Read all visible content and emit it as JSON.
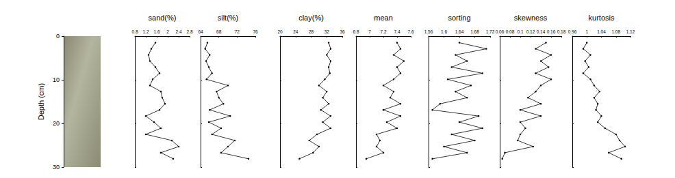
{
  "chart_data": [
    {
      "type": "image",
      "ylabel": "Depth (cm)",
      "ylim": [
        0,
        30
      ],
      "yticks": [
        0,
        10,
        20,
        30
      ],
      "tick_labels": "y",
      "grid": false
    },
    {
      "type": "line",
      "title": "sand(%)",
      "x": [
        1.55,
        1.4,
        1.3,
        1.35,
        1.55,
        1.7,
        1.45,
        1.35,
        1.75,
        1.8,
        1.9,
        1.7,
        1.2,
        1.5,
        1.75,
        1.2,
        2.15,
        2.4,
        1.75,
        2.2
      ],
      "y": [
        1.5,
        2.9,
        4.3,
        5.7,
        7.1,
        8.5,
        9.9,
        11.3,
        12.7,
        14.1,
        15.5,
        16.9,
        18.3,
        19.7,
        21.1,
        22.5,
        23.9,
        25.3,
        26.7,
        28.1
      ],
      "xlim": [
        0.8,
        2.8
      ],
      "xticks": [
        0.8,
        1.2,
        1.6,
        2,
        2.4,
        2.8
      ],
      "ylim": [
        0,
        30
      ],
      "yticks": [
        0,
        10,
        20,
        30
      ],
      "tick_labels": "x",
      "grid": false,
      "color": "#000000",
      "marker": "circle",
      "line_style": "solid"
    },
    {
      "type": "line",
      "title": "silt(%)",
      "x": [
        65.5,
        65.0,
        66.0,
        65.2,
        65.8,
        66.5,
        65.3,
        70.0,
        67.5,
        68.0,
        69.0,
        66.0,
        70.5,
        65.8,
        68.5,
        66.5,
        71.5,
        70.0,
        68.5,
        74.5
      ],
      "y": [
        1.5,
        2.9,
        4.3,
        5.7,
        7.1,
        8.5,
        9.9,
        11.3,
        12.7,
        14.1,
        15.5,
        16.9,
        18.3,
        19.7,
        21.1,
        22.5,
        23.9,
        25.3,
        26.7,
        28.1
      ],
      "xlim": [
        64,
        76
      ],
      "xticks": [
        64,
        68,
        72,
        76
      ],
      "ylim": [
        0,
        30
      ],
      "yticks": [
        0,
        10,
        20,
        30
      ],
      "tick_labels": "x",
      "grid": false,
      "color": "#000000",
      "marker": "circle",
      "line_style": "solid"
    },
    {
      "type": "line",
      "title": "clay(%)",
      "x": [
        32.5,
        33.0,
        32.0,
        33.0,
        32.5,
        32.8,
        31.5,
        30.0,
        32.0,
        31.0,
        32.5,
        30.5,
        33.0,
        31.0,
        33.0,
        29.5,
        27.5,
        30.0,
        28.5,
        25.0
      ],
      "y": [
        1.5,
        2.9,
        4.3,
        5.7,
        7.1,
        8.5,
        9.9,
        11.3,
        12.7,
        14.1,
        15.5,
        16.9,
        18.3,
        19.7,
        21.1,
        22.5,
        23.9,
        25.3,
        26.7,
        28.1
      ],
      "xlim": [
        20,
        36
      ],
      "xticks": [
        20,
        24,
        28,
        32,
        36
      ],
      "ylim": [
        0,
        30
      ],
      "yticks": [
        0,
        10,
        20,
        30
      ],
      "tick_labels": "x",
      "grid": false,
      "color": "#000000",
      "marker": "circle",
      "line_style": "solid"
    },
    {
      "type": "line",
      "title": "mean",
      "x": [
        7.4,
        7.45,
        7.35,
        7.5,
        7.4,
        7.45,
        7.35,
        7.2,
        7.35,
        7.3,
        7.45,
        7.2,
        7.45,
        7.25,
        7.4,
        7.1,
        7.15,
        7.1,
        7.2,
        6.95
      ],
      "y": [
        1.5,
        2.9,
        4.3,
        5.7,
        7.1,
        8.5,
        9.9,
        11.3,
        12.7,
        14.1,
        15.5,
        16.9,
        18.3,
        19.7,
        21.1,
        22.5,
        23.9,
        25.3,
        26.7,
        28.1
      ],
      "xlim": [
        6.8,
        7.6
      ],
      "xticks": [
        6.8,
        7,
        7.2,
        7.4,
        7.6
      ],
      "ylim": [
        0,
        30
      ],
      "yticks": [
        0,
        10,
        20,
        30
      ],
      "tick_labels": "x",
      "grid": false,
      "color": "#000000",
      "marker": "circle",
      "line_style": "solid"
    },
    {
      "type": "line",
      "title": "sorting",
      "x": [
        1.64,
        1.71,
        1.63,
        1.66,
        1.62,
        1.7,
        1.61,
        1.67,
        1.63,
        1.66,
        1.59,
        1.57,
        1.69,
        1.64,
        1.7,
        1.62,
        1.68,
        1.6,
        1.66,
        1.57
      ],
      "y": [
        1.5,
        2.9,
        4.3,
        5.7,
        7.1,
        8.5,
        9.9,
        11.3,
        12.7,
        14.1,
        15.5,
        16.9,
        18.3,
        19.7,
        21.1,
        22.5,
        23.9,
        25.3,
        26.7,
        28.1
      ],
      "xlim": [
        1.56,
        1.72
      ],
      "xticks": [
        1.56,
        1.6,
        1.64,
        1.68,
        1.72
      ],
      "ylim": [
        0,
        30
      ],
      "yticks": [
        0,
        10,
        20,
        30
      ],
      "tick_labels": "x",
      "grid": false,
      "color": "#000000",
      "marker": "circle",
      "line_style": "solid"
    },
    {
      "type": "line",
      "title": "skewness",
      "x": [
        0.15,
        0.13,
        0.16,
        0.14,
        0.155,
        0.13,
        0.16,
        0.14,
        0.13,
        0.115,
        0.14,
        0.1,
        0.14,
        0.1,
        0.11,
        0.1,
        0.095,
        0.125,
        0.07,
        0.065
      ],
      "y": [
        1.5,
        2.9,
        4.3,
        5.7,
        7.1,
        8.5,
        9.9,
        11.3,
        12.7,
        14.1,
        15.5,
        16.9,
        18.3,
        19.7,
        21.1,
        22.5,
        23.9,
        25.3,
        26.7,
        28.1
      ],
      "xlim": [
        0.06,
        0.18
      ],
      "xticks": [
        0.06,
        0.08,
        0.1,
        0.12,
        0.14,
        0.16,
        0.18
      ],
      "ylim": [
        0,
        30
      ],
      "yticks": [
        0,
        10,
        20,
        30
      ],
      "tick_labels": "x",
      "grid": false,
      "color": "#000000",
      "marker": "circle",
      "line_style": "solid"
    },
    {
      "type": "line",
      "title": "kurtosis",
      "x": [
        1.0,
        0.99,
        1.01,
        0.995,
        1.005,
        0.99,
        1.01,
        1.02,
        1.035,
        1.02,
        1.03,
        1.025,
        1.04,
        1.03,
        1.05,
        1.08,
        1.09,
        1.105,
        1.06,
        1.095
      ],
      "y": [
        1.5,
        2.9,
        4.3,
        5.7,
        7.1,
        8.5,
        9.9,
        11.3,
        12.7,
        14.1,
        15.5,
        16.9,
        18.3,
        19.7,
        21.1,
        22.5,
        23.9,
        25.3,
        26.7,
        28.1
      ],
      "xlim": [
        0.96,
        1.12
      ],
      "xticks": [
        0.96,
        1,
        1.04,
        1.08,
        1.12
      ],
      "ylim": [
        0,
        30
      ],
      "yticks": [
        0,
        10,
        20,
        30
      ],
      "tick_labels": "x",
      "grid": false,
      "color": "#000000",
      "marker": "circle",
      "line_style": "solid"
    }
  ]
}
